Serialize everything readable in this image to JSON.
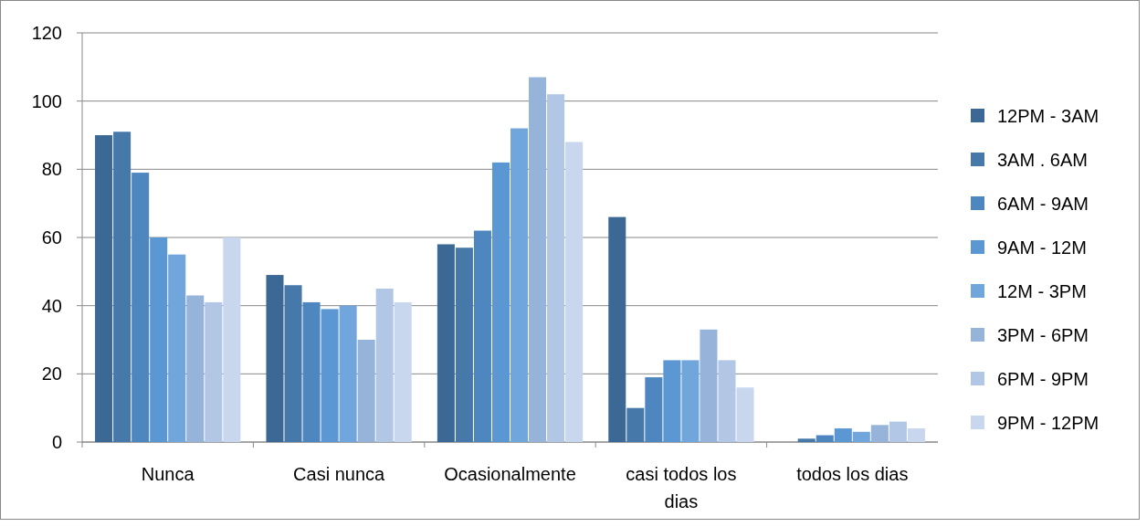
{
  "chart_data": {
    "type": "bar",
    "categories": [
      "Nunca",
      "Casi nunca",
      "Ocasionalmente",
      "casi todos los dias",
      "todos los dias"
    ],
    "series": [
      {
        "name": "12PM - 3AM",
        "color": "#3c6896",
        "values": [
          90,
          49,
          58,
          66,
          0
        ]
      },
      {
        "name": "3AM . 6AM",
        "color": "#4778aa",
        "values": [
          91,
          46,
          57,
          10,
          1
        ]
      },
      {
        "name": "6AM - 9AM",
        "color": "#4e86c0",
        "values": [
          79,
          41,
          62,
          19,
          2
        ]
      },
      {
        "name": "9AM - 12M",
        "color": "#5a97d3",
        "values": [
          60,
          39,
          82,
          24,
          4
        ]
      },
      {
        "name": "12M - 3PM",
        "color": "#70a6dc",
        "values": [
          55,
          40,
          92,
          24,
          3
        ]
      },
      {
        "name": "3PM - 6PM",
        "color": "#96b4d9",
        "values": [
          43,
          30,
          107,
          33,
          5
        ]
      },
      {
        "name": "6PM - 9PM",
        "color": "#b2c7e6",
        "values": [
          41,
          45,
          102,
          24,
          6
        ]
      },
      {
        "name": "9PM - 12PM",
        "color": "#c8d7ee",
        "values": [
          60,
          41,
          88,
          16,
          4
        ]
      }
    ],
    "ylim": [
      0,
      120
    ],
    "yticks": [
      0,
      20,
      40,
      60,
      80,
      100,
      120
    ],
    "grid": "y",
    "legend": "right"
  }
}
